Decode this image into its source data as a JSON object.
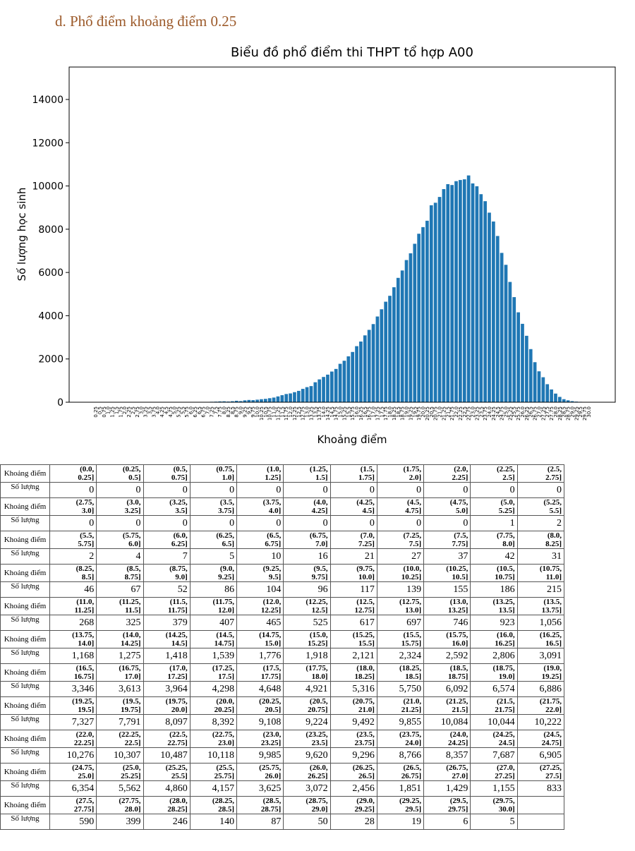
{
  "heading": "d.  Phổ điểm khoảng điểm 0.25",
  "chart_data": {
    "type": "bar",
    "title": "Biểu đồ phổ điểm thi THPT tổ hợp A00",
    "x_label": "Khoảng điểm",
    "y_label": "Số lượng học sinh",
    "color": "#1f77b4",
    "categories": [
      "0.25",
      "0.5",
      "0.75",
      "1.0",
      "1.25",
      "1.5",
      "1.75",
      "2.0",
      "2.25",
      "2.5",
      "2.75",
      "3.0",
      "3.25",
      "3.5",
      "3.75",
      "4.0",
      "4.25",
      "4.5",
      "4.75",
      "5.0",
      "5.25",
      "5.5",
      "5.75",
      "6.0",
      "6.25",
      "6.5",
      "6.75",
      "7.0",
      "7.25",
      "7.5",
      "7.75",
      "8.0",
      "8.25",
      "8.5",
      "8.75",
      "9.0",
      "9.25",
      "9.5",
      "9.75",
      "10.0",
      "10.25",
      "10.5",
      "10.75",
      "11.0",
      "11.25",
      "11.5",
      "11.75",
      "12.0",
      "12.25",
      "12.5",
      "12.75",
      "13.0",
      "13.25",
      "13.5",
      "13.75",
      "14.0",
      "14.25",
      "14.5",
      "14.75",
      "15.0",
      "15.25",
      "15.5",
      "15.75",
      "16.0",
      "16.25",
      "16.5",
      "16.75",
      "17.0",
      "17.25",
      "17.5",
      "17.75",
      "18.0",
      "18.25",
      "18.5",
      "18.75",
      "19.0",
      "19.25",
      "19.5",
      "19.75",
      "20.0",
      "20.25",
      "20.5",
      "20.75",
      "21.0",
      "21.25",
      "21.5",
      "21.75",
      "22.0",
      "22.25",
      "22.5",
      "22.75",
      "23.0",
      "23.25",
      "23.5",
      "23.75",
      "24.0",
      "24.25",
      "24.5",
      "24.75",
      "25.0",
      "25.25",
      "25.5",
      "25.75",
      "26.0",
      "26.25",
      "26.5",
      "26.75",
      "27.0",
      "27.25",
      "27.5",
      "27.75",
      "28.0",
      "28.25",
      "28.5",
      "28.75",
      "29.0",
      "29.25",
      "29.5",
      "29.75",
      "30.0"
    ],
    "values": [
      0,
      0,
      0,
      0,
      0,
      0,
      0,
      0,
      0,
      0,
      0,
      0,
      0,
      0,
      0,
      0,
      0,
      0,
      0,
      0,
      1,
      2,
      2,
      4,
      7,
      5,
      10,
      16,
      21,
      27,
      37,
      42,
      31,
      46,
      67,
      52,
      86,
      104,
      96,
      117,
      139,
      155,
      186,
      215,
      268,
      325,
      379,
      407,
      465,
      525,
      617,
      697,
      746,
      923,
      1056,
      1168,
      1275,
      1418,
      1539,
      1776,
      1918,
      2121,
      2324,
      2592,
      2806,
      3091,
      3346,
      3613,
      3964,
      4298,
      4648,
      4921,
      5316,
      5750,
      6092,
      6574,
      6886,
      7327,
      7791,
      8097,
      8392,
      9108,
      9224,
      9492,
      9855,
      10084,
      10044,
      10222,
      10276,
      10307,
      10487,
      10118,
      9985,
      9620,
      9296,
      8766,
      8357,
      7687,
      6905,
      6354,
      5562,
      4860,
      4157,
      3625,
      3072,
      2456,
      1851,
      1429,
      1155,
      833,
      590,
      399,
      246,
      140,
      87,
      50,
      28,
      19,
      6,
      5
    ],
    "ylim": [
      0,
      15500
    ],
    "yticks": [
      0,
      2000,
      4000,
      6000,
      8000,
      10000,
      12000,
      14000
    ]
  },
  "table": {
    "row_labels": [
      "Khoảng điểm",
      "Số lượng"
    ],
    "intervals": [
      "(0.0, 0.25]",
      "(0.25, 0.5]",
      "(0.5, 0.75]",
      "(0.75, 1.0]",
      "(1.0, 1.25]",
      "(1.25, 1.5]",
      "(1.5, 1.75]",
      "(1.75, 2.0]",
      "(2.0, 2.25]",
      "(2.25, 2.5]",
      "(2.5, 2.75]",
      "(2.75, 3.0]",
      "(3.0, 3.25]",
      "(3.25, 3.5]",
      "(3.5, 3.75]",
      "(3.75, 4.0]",
      "(4.0, 4.25]",
      "(4.25, 4.5]",
      "(4.5, 4.75]",
      "(4.75, 5.0]",
      "(5.0, 5.25]",
      "(5.25, 5.5]",
      "(5.5, 5.75]",
      "(5.75, 6.0]",
      "(6.0, 6.25]",
      "(6.25, 6.5]",
      "(6.5, 6.75]",
      "(6.75, 7.0]",
      "(7.0, 7.25]",
      "(7.25, 7.5]",
      "(7.5, 7.75]",
      "(7.75, 8.0]",
      "(8.0, 8.25]",
      "(8.25, 8.5]",
      "(8.5, 8.75]",
      "(8.75, 9.0]",
      "(9.0, 9.25]",
      "(9.25, 9.5]",
      "(9.5, 9.75]",
      "(9.75, 10.0]",
      "(10.0, 10.25]",
      "(10.25, 10.5]",
      "(10.5, 10.75]",
      "(10.75, 11.0]",
      "(11.0, 11.25]",
      "(11.25, 11.5]",
      "(11.5, 11.75]",
      "(11.75, 12.0]",
      "(12.0, 12.25]",
      "(12.25, 12.5]",
      "(12.5, 12.75]",
      "(12.75, 13.0]",
      "(13.0, 13.25]",
      "(13.25, 13.5]",
      "(13.5, 13.75]",
      "(13.75, 14.0]",
      "(14.0, 14.25]",
      "(14.25, 14.5]",
      "(14.5, 14.75]",
      "(14.75, 15.0]",
      "(15.0, 15.25]",
      "(15.25, 15.5]",
      "(15.5, 15.75]",
      "(15.75, 16.0]",
      "(16.0, 16.25]",
      "(16.25, 16.5]",
      "(16.5, 16.75]",
      "(16.75, 17.0]",
      "(17.0, 17.25]",
      "(17.25, 17.5]",
      "(17.5, 17.75]",
      "(17.75, 18.0]",
      "(18.0, 18.25]",
      "(18.25, 18.5]",
      "(18.5, 18.75]",
      "(18.75, 19.0]",
      "(19.0, 19.25]",
      "(19.25, 19.5]",
      "(19.5, 19.75]",
      "(19.75, 20.0]",
      "(20.0, 20.25]",
      "(20.25, 20.5]",
      "(20.5, 20.75]",
      "(20.75, 21.0]",
      "(21.0, 21.25]",
      "(21.25, 21.5]",
      "(21.5, 21.75]",
      "(21.75, 22.0]",
      "(22.0, 22.25]",
      "(22.25, 22.5]",
      "(22.5, 22.75]",
      "(22.75, 23.0]",
      "(23.0, 23.25]",
      "(23.25, 23.5]",
      "(23.5, 23.75]",
      "(23.75, 24.0]",
      "(24.0, 24.25]",
      "(24.25, 24.5]",
      "(24.5, 24.75]",
      "(24.75, 25.0]",
      "(25.0, 25.25]",
      "(25.25, 25.5]",
      "(25.5, 25.75]",
      "(25.75, 26.0]",
      "(26.0, 26.25]",
      "(26.25, 26.5]",
      "(26.5, 26.75]",
      "(26.75, 27.0]",
      "(27.0, 27.25]",
      "(27.25, 27.5]",
      "(27.5, 27.75]",
      "(27.75, 28.0]",
      "(28.0, 28.25]",
      "(28.25, 28.5]",
      "(28.5, 28.75]",
      "(28.75, 29.0]",
      "(29.0, 29.25]",
      "(29.25, 29.5]",
      "(29.5, 29.75]",
      "(29.75, 30.0]"
    ],
    "counts": [
      "0",
      "0",
      "0",
      "0",
      "0",
      "0",
      "0",
      "0",
      "0",
      "0",
      "0",
      "0",
      "0",
      "0",
      "0",
      "0",
      "0",
      "0",
      "0",
      "0",
      "1",
      "2",
      "2",
      "4",
      "7",
      "5",
      "10",
      "16",
      "21",
      "27",
      "37",
      "42",
      "31",
      "46",
      "67",
      "52",
      "86",
      "104",
      "96",
      "117",
      "139",
      "155",
      "186",
      "215",
      "268",
      "325",
      "379",
      "407",
      "465",
      "525",
      "617",
      "697",
      "746",
      "923",
      "1,056",
      "1,168",
      "1,275",
      "1,418",
      "1,539",
      "1,776",
      "1,918",
      "2,121",
      "2,324",
      "2,592",
      "2,806",
      "3,091",
      "3,346",
      "3,613",
      "3,964",
      "4,298",
      "4,648",
      "4,921",
      "5,316",
      "5,750",
      "6,092",
      "6,574",
      "6,886",
      "7,327",
      "7,791",
      "8,097",
      "8,392",
      "9,108",
      "9,224",
      "9,492",
      "9,855",
      "10,084",
      "10,044",
      "10,222",
      "10,276",
      "10,307",
      "10,487",
      "10,118",
      "9,985",
      "9,620",
      "9,296",
      "8,766",
      "8,357",
      "7,687",
      "6,905",
      "6,354",
      "5,562",
      "4,860",
      "4,157",
      "3,625",
      "3,072",
      "2,456",
      "1,851",
      "1,429",
      "1,155",
      "833",
      "590",
      "399",
      "246",
      "140",
      "87",
      "50",
      "28",
      "19",
      "6",
      "5"
    ]
  }
}
